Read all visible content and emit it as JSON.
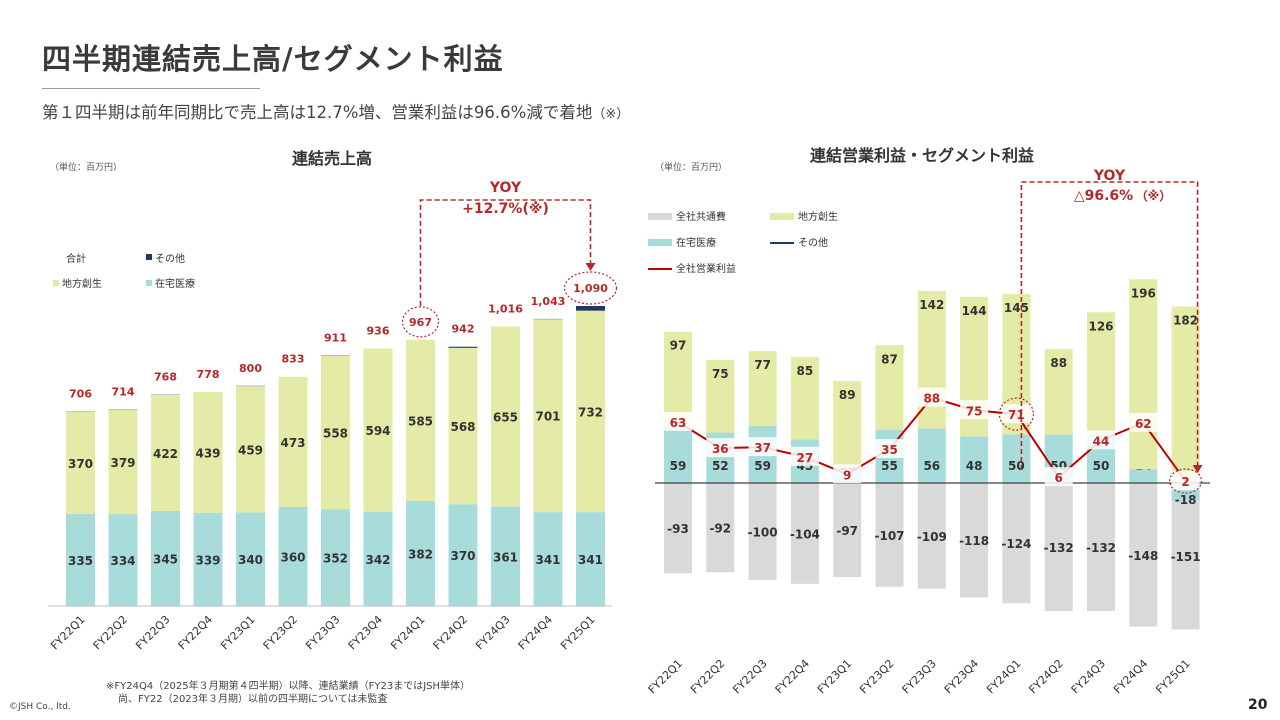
{
  "page": {
    "title": "四半期連結売上高/セグメント利益",
    "subtitle": "第１四半期は前年同期比で売上高は12.7%増、営業利益は96.6%減で着地",
    "subtitle_note": "（※）",
    "footnote_line1": "※FY24Q4（2025年３月期第４四半期）以降、連結業績（FY23まではJSH単体）",
    "footnote_line2": "尚、FY22（2023年３月期）以前の四半期については未監査",
    "copyright": "©JSH Co., ltd.",
    "page_number": "20"
  },
  "colors": {
    "chiho": "#e3eba6",
    "zaitaku": "#a7dcdb",
    "kyotsu": "#d9d9d9",
    "sonota": "#1f3864",
    "accent_red": "#b42828",
    "line": "#c00000"
  },
  "chart_data": [
    {
      "type": "bar",
      "title": "連結売上高",
      "unit_label": "（単位：百万円）",
      "stacked": true,
      "categories": [
        "FY22Q1",
        "FY22Q2",
        "FY22Q3",
        "FY22Q4",
        "FY23Q1",
        "FY23Q2",
        "FY23Q3",
        "FY23Q4",
        "FY24Q1",
        "FY24Q2",
        "FY24Q3",
        "FY24Q4",
        "FY25Q1"
      ],
      "series": [
        {
          "name": "在宅医療",
          "values": [
            335,
            334,
            345,
            339,
            340,
            360,
            352,
            342,
            382,
            370,
            361,
            341,
            341
          ]
        },
        {
          "name": "地方創生",
          "values": [
            370,
            379,
            422,
            439,
            459,
            473,
            558,
            594,
            585,
            568,
            655,
            701,
            732
          ]
        },
        {
          "name": "その他",
          "values": [
            1,
            1,
            1,
            0,
            1,
            0,
            1,
            0,
            0,
            4,
            0,
            1,
            17
          ]
        }
      ],
      "totals": [
        706,
        714,
        768,
        778,
        800,
        833,
        911,
        936,
        967,
        942,
        1016,
        1043,
        1090
      ],
      "legend": {
        "total_label": "合計",
        "items": [
          {
            "name": "その他",
            "color": "#1f3864"
          },
          {
            "name": "地方創生",
            "color": "#e3eba6"
          },
          {
            "name": "在宅医療",
            "color": "#a7dcdb"
          }
        ]
      },
      "yoy": {
        "line1": "YOY",
        "line2": "+12.7%(※)"
      },
      "highlight": [
        "FY24Q1",
        "FY25Q1"
      ],
      "ylim": [
        0,
        1150
      ]
    },
    {
      "type": "bar",
      "title": "連結営業利益・セグメント利益",
      "unit_label": "（単位：百万円）",
      "stacked": true,
      "categories": [
        "FY22Q1",
        "FY22Q2",
        "FY22Q3",
        "FY22Q4",
        "FY23Q1",
        "FY23Q2",
        "FY23Q3",
        "FY23Q4",
        "FY24Q1",
        "FY24Q2",
        "FY24Q3",
        "FY24Q4",
        "FY25Q1"
      ],
      "series": [
        {
          "name": "在宅医療",
          "values": [
            59,
            52,
            59,
            45,
            16,
            55,
            56,
            48,
            50,
            50,
            50,
            14,
            -18
          ]
        },
        {
          "name": "地方創生",
          "values": [
            97,
            75,
            77,
            85,
            89,
            87,
            142,
            144,
            145,
            88,
            126,
            196,
            182
          ]
        },
        {
          "name": "全社共通費",
          "values": [
            -93,
            -92,
            -100,
            -104,
            -97,
            -107,
            -109,
            -118,
            -124,
            -132,
            -132,
            -148,
            -151
          ]
        },
        {
          "name": "全社営業利益",
          "type": "line",
          "values": [
            63,
            36,
            37,
            27,
            9,
            35,
            88,
            75,
            71,
            6,
            44,
            62,
            2
          ]
        }
      ],
      "legend": {
        "items": [
          {
            "name": "全社共通費",
            "color": "#d9d9d9"
          },
          {
            "name": "地方創生",
            "color": "#e3eba6"
          },
          {
            "name": "在宅医療",
            "color": "#a7dcdb"
          },
          {
            "name": "その他",
            "color": "#1f3864"
          },
          {
            "name": "全社営業利益",
            "color": "#c00000"
          }
        ]
      },
      "yoy": {
        "line1": "YOY",
        "line2": "△96.6%",
        "line2_note": "（※）"
      },
      "highlight": [
        "FY24Q1",
        "FY25Q1"
      ],
      "ylim": [
        -170,
        270
      ]
    }
  ]
}
